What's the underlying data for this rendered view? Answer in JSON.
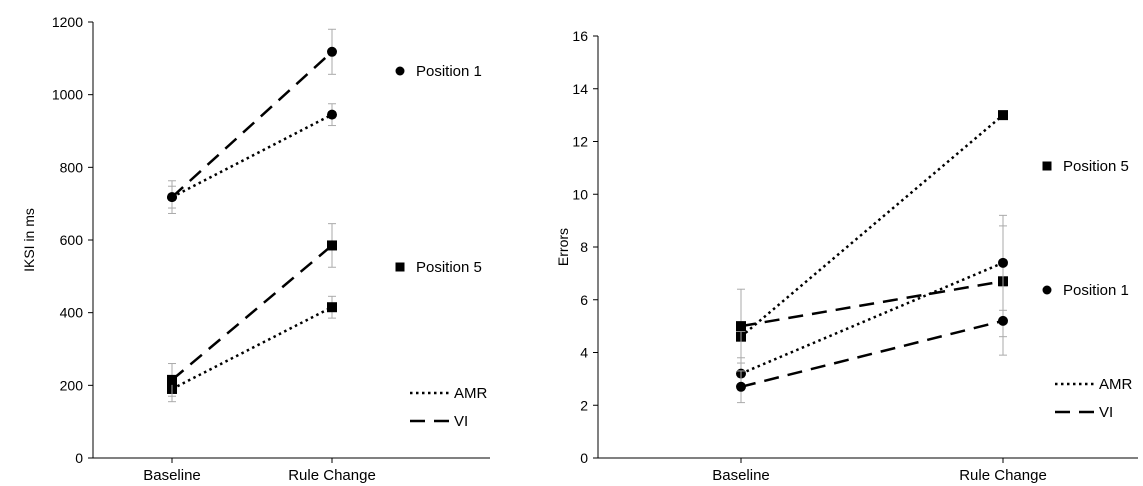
{
  "chart_data": [
    {
      "type": "line",
      "title": "",
      "xlabel": "",
      "ylabel": "IKSI in ms",
      "categories": [
        "Baseline",
        "Rule Change"
      ],
      "ylim": [
        0,
        1200
      ],
      "yticks": [
        0,
        200,
        400,
        600,
        800,
        1000,
        1200
      ],
      "grid": false,
      "series": [
        {
          "group": "Position 1",
          "style": "AMR",
          "marker": "circle",
          "values": [
            718,
            945
          ],
          "errors": [
            30,
            30
          ]
        },
        {
          "group": "Position 1",
          "style": "VI",
          "marker": "circle",
          "values": [
            718,
            1118
          ],
          "errors": [
            45,
            62
          ]
        },
        {
          "group": "Position 5",
          "style": "AMR",
          "marker": "square",
          "values": [
            190,
            415
          ],
          "errors": [
            35,
            30
          ]
        },
        {
          "group": "Position 5",
          "style": "VI",
          "marker": "square",
          "values": [
            215,
            585
          ],
          "errors": [
            45,
            60
          ]
        }
      ],
      "marker_legend": [
        {
          "label": "Position 1",
          "marker": "circle"
        },
        {
          "label": "Position 5",
          "marker": "square"
        }
      ],
      "line_legend": [
        {
          "label": "AMR",
          "dash": "dotted"
        },
        {
          "label": "VI",
          "dash": "dashed"
        }
      ],
      "legend_placement": "right"
    },
    {
      "type": "line",
      "title": "",
      "xlabel": "",
      "ylabel": "Errors",
      "categories": [
        "Baseline",
        "Rule Change"
      ],
      "ylim": [
        0,
        16
      ],
      "yticks": [
        0,
        2,
        4,
        6,
        8,
        10,
        12,
        14,
        16
      ],
      "grid": false,
      "series": [
        {
          "group": "Position 5",
          "style": "AMR",
          "marker": "square",
          "values": [
            4.6,
            13.0
          ],
          "errors": [
            0,
            0
          ]
        },
        {
          "group": "Position 5",
          "style": "VI",
          "marker": "square",
          "values": [
            5.0,
            6.7
          ],
          "errors": [
            1.4,
            2.1
          ]
        },
        {
          "group": "Position 1",
          "style": "AMR",
          "marker": "circle",
          "values": [
            3.2,
            7.4
          ],
          "errors": [
            0.6,
            1.8
          ]
        },
        {
          "group": "Position 1",
          "style": "VI",
          "marker": "circle",
          "values": [
            2.7,
            5.2
          ],
          "errors": [
            0.6,
            1.3
          ]
        }
      ],
      "marker_legend": [
        {
          "label": "Position 5",
          "marker": "square"
        },
        {
          "label": "Position 1",
          "marker": "circle"
        }
      ],
      "line_legend": [
        {
          "label": "AMR",
          "dash": "dotted"
        },
        {
          "label": "VI",
          "dash": "dashed"
        }
      ],
      "legend_placement": "right"
    }
  ]
}
